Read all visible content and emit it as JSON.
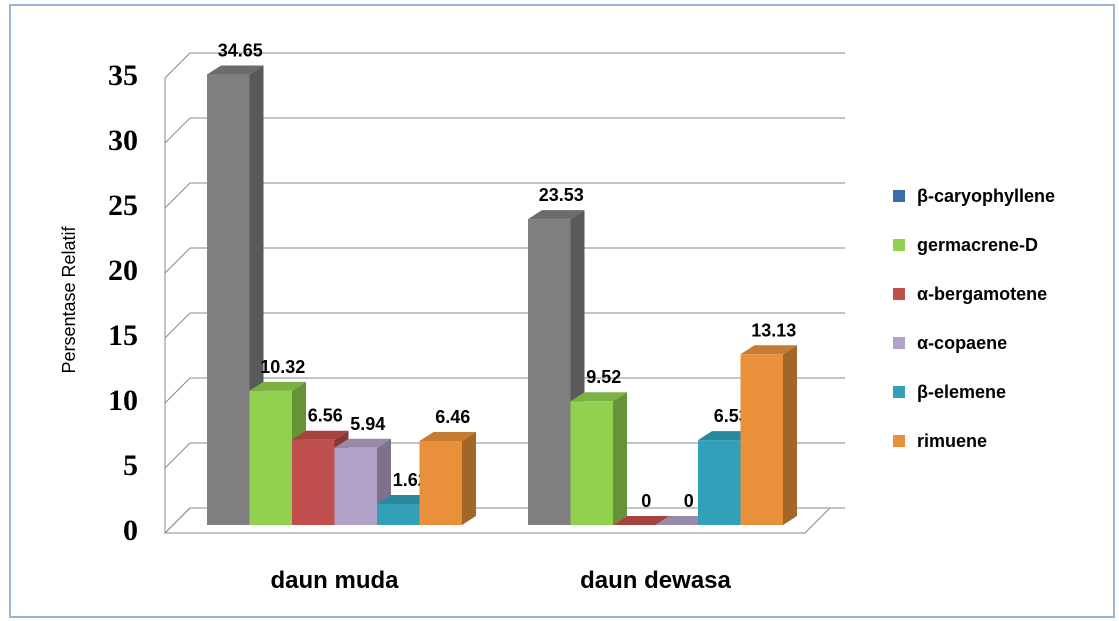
{
  "chart_data": {
    "type": "bar3d",
    "y_axis_label": "Persentase Relatif",
    "categories": [
      "daun muda",
      "daun dewasa"
    ],
    "series": [
      {
        "name": "β-caryophyllene",
        "color": "#7f7f7f",
        "legend_color": "#3a6db0",
        "values": [
          34.65,
          23.53
        ]
      },
      {
        "name": "germacrene-D",
        "color": "#92d050",
        "values": [
          10.32,
          9.52
        ]
      },
      {
        "name": "α-bergamotene",
        "color": "#c0504d",
        "values": [
          6.56,
          0
        ]
      },
      {
        "name": "α-copaene",
        "color": "#b3a2c7",
        "values": [
          5.94,
          0
        ]
      },
      {
        "name": "β-elemene",
        "color": "#31a0b8",
        "values": [
          1.62,
          6.53
        ]
      },
      {
        "name": "rimuene",
        "color": "#e8913a",
        "values": [
          6.46,
          13.13
        ]
      }
    ],
    "ylim": [
      0,
      35
    ],
    "yticks": [
      0,
      5,
      10,
      15,
      20,
      25,
      30,
      35
    ],
    "grid": true,
    "legend": "right"
  }
}
